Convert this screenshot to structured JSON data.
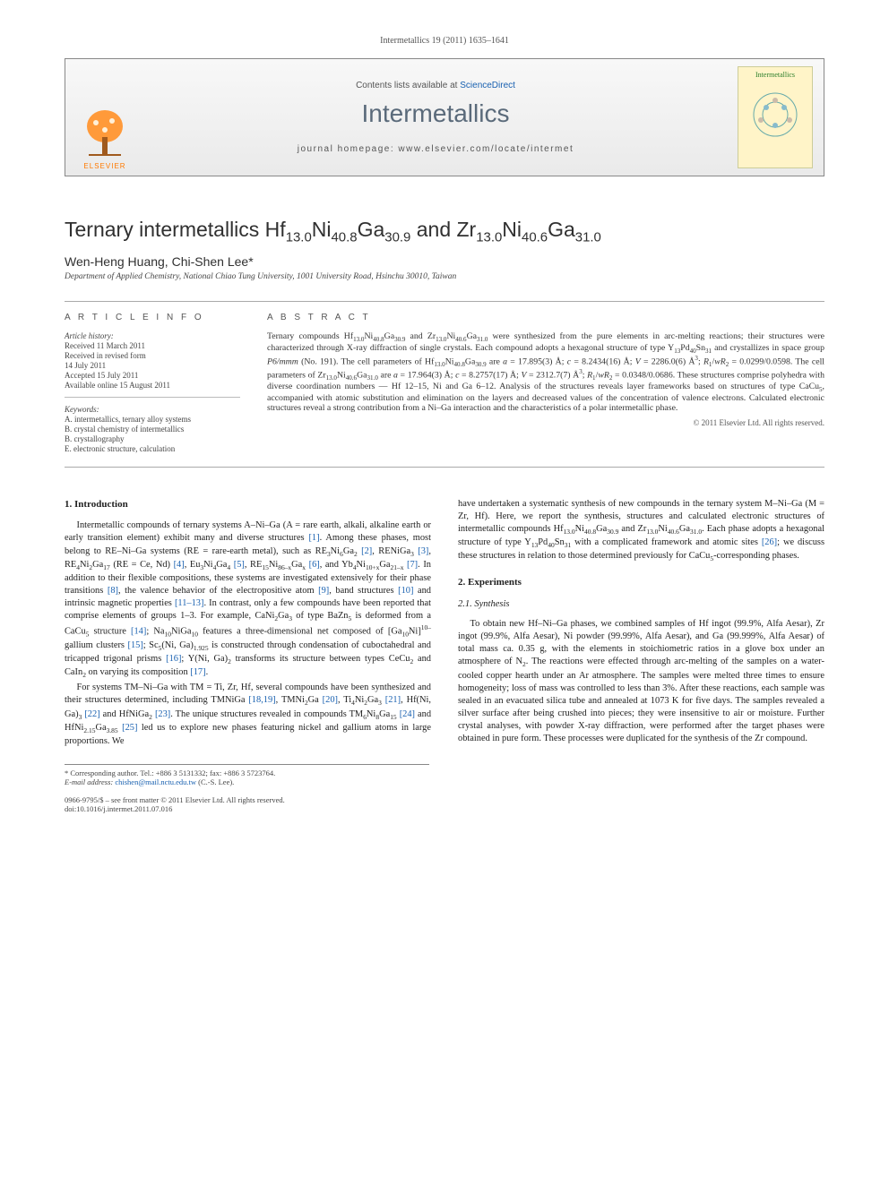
{
  "running_head": "Intermetallics 19 (2011) 1635–1641",
  "banner": {
    "contents_prefix": "Contents lists available at ",
    "contents_link": "ScienceDirect",
    "journal": "Intermetallics",
    "homepage_label": "journal homepage: ",
    "homepage_url": "www.elsevier.com/locate/intermet",
    "publisher": "ELSEVIER",
    "cover_label": "Intermetallics"
  },
  "title_html": "Ternary intermetallics Hf<sub>13.0</sub>Ni<sub>40.8</sub>Ga<sub>30.9</sub> and Zr<sub>13.0</sub>Ni<sub>40.6</sub>Ga<sub>31.0</sub>",
  "authors": "Wen-Heng Huang, Chi-Shen Lee*",
  "affiliation": "Department of Applied Chemistry, National Chiao Tung University, 1001 University Road, Hsinchu 30010, Taiwan",
  "article_info": {
    "head": "A R T I C L E   I N F O",
    "history_head": "Article history:",
    "history": [
      "Received 11 March 2011",
      "Received in revised form",
      "14 July 2011",
      "Accepted 15 July 2011",
      "Available online 15 August 2011"
    ],
    "keywords_head": "Keywords:",
    "keywords": [
      "A. intermetallics, ternary alloy systems",
      "B. crystal chemistry of intermetallics",
      "B. crystallography",
      "E. electronic structure, calculation"
    ]
  },
  "abstract": {
    "head": "A B S T R A C T",
    "text_html": "Ternary compounds Hf<sub>13.0</sub>Ni<sub>40.8</sub>Ga<sub>30.9</sub> and Zr<sub>13.0</sub>Ni<sub>40.6</sub>Ga<sub>31.0</sub> were synthesized from the pure elements in arc-melting reactions; their structures were characterized through X-ray diffraction of single crystals. Each compound adopts a hexagonal structure of type Y<sub>13</sub>Pd<sub>40</sub>Sn<sub>31</sub> and crystallizes in space group <i>P6/mmm</i> (No. 191). The cell parameters of Hf<sub>13.0</sub>Ni<sub>40.8</sub>Ga<sub>30.9</sub> are <i>a</i> = 17.895(3) Å; <i>c</i> = 8.2434(16) Å; <i>V</i> = 2286.0(6) Å<sup>3</sup>; <i>R</i><sub>1</sub>/<i>wR</i><sub>2</sub> = 0.0299/0.0598. The cell parameters of Zr<sub>13.0</sub>Ni<sub>40.6</sub>Ga<sub>31.0</sub> are <i>a</i> = 17.964(3) Å; <i>c</i> = 8.2757(17) Å; <i>V</i> = 2312.7(7) Å<sup>3</sup>; <i>R</i><sub>1</sub>/<i>wR</i><sub>2</sub> = 0.0348/0.0686. These structures comprise polyhedra with diverse coordination numbers — Hf 12–15, Ni and Ga 6–12. Analysis of the structures reveals layer frameworks based on structures of type CaCu<sub>5</sub>, accompanied with atomic substitution and elimination on the layers and decreased values of the concentration of valence electrons. Calculated electronic structures reveal a strong contribution from a Ni–Ga interaction and the characteristics of a polar intermetallic phase.",
    "copyright": "© 2011 Elsevier Ltd. All rights reserved."
  },
  "sections": {
    "s1_head": "1. Introduction",
    "s1_p1_html": "Intermetallic compounds of ternary systems A–Ni–Ga (A = rare earth, alkali, alkaline earth or early transition element) exhibit many and diverse structures <span class=\"refnum\">[1]</span>. Among these phases, most belong to RE–Ni–Ga systems (RE = rare-earth metal), such as RE<sub>3</sub>Ni<sub>6</sub>Ga<sub>2</sub> <span class=\"refnum\">[2]</span>, RENiGa<sub>3</sub> <span class=\"refnum\">[3]</span>, RE<sub>4</sub>Ni<sub>2</sub>Ga<sub>17</sub> (RE = Ce, Nd) <span class=\"refnum\">[4]</span>, Eu<sub>3</sub>Ni<sub>4</sub>Ga<sub>4</sub> <span class=\"refnum\">[5]</span>, RE<sub>15</sub>Ni<sub>86–x</sub>Ga<sub>x</sub> <span class=\"refnum\">[6]</span>, and Yb<sub>4</sub>Ni<sub>10+x</sub>Ga<sub>21–x</sub> <span class=\"refnum\">[7]</span>. In addition to their flexible compositions, these systems are investigated extensively for their phase transitions <span class=\"refnum\">[8]</span>, the valence behavior of the electropositive atom <span class=\"refnum\">[9]</span>, band structures <span class=\"refnum\">[10]</span> and intrinsic magnetic properties <span class=\"refnum\">[11–13]</span>. In contrast, only a few compounds have been reported that comprise elements of groups 1–3. For example, CaNi<sub>2</sub>Ga<sub>3</sub> of type BaZn<sub>5</sub> is deformed from a CaCu<sub>5</sub> structure <span class=\"refnum\">[14]</span>; Na<sub>10</sub>NiGa<sub>10</sub> features a three-dimensional net composed of [Ga<sub>10</sub>Ni]<sup>10–</sup> gallium clusters <span class=\"refnum\">[15]</span>; Sc<sub>5</sub>(Ni, Ga)<sub>1.925</sub> is constructed through condensation of cuboctahedral and tricapped trigonal prisms <span class=\"refnum\">[16]</span>; Y(Ni, Ga)<sub>2</sub> transforms its structure between types CeCu<sub>2</sub> and CaIn<sub>2</sub> on varying its composition <span class=\"refnum\">[17]</span>.",
    "s1_p2_html": "For systems TM–Ni–Ga with TM = Ti, Zr, Hf, several compounds have been synthesized and their structures determined, including TMNiGa <span class=\"refnum\">[18,19]</span>, TMNi<sub>2</sub>Ga <span class=\"refnum\">[20]</span>, Ti<sub>4</sub>Ni<sub>2</sub>Ga<sub>3</sub> <span class=\"refnum\">[21]</span>, Hf(Ni, Ga)<sub>3</sub> <span class=\"refnum\">[22]</span> and HfNiGa<sub>2</sub> <span class=\"refnum\">[23]</span>. The unique structures revealed in compounds TM<sub>6</sub>Ni<sub>8</sub>Ga<sub>15</sub> <span class=\"refnum\">[24]</span> and HfNi<sub>2.15</sub>Ga<sub>3.85</sub> <span class=\"refnum\">[25]</span> led us to explore new phases featuring nickel and gallium atoms in large proportions. We ",
    "s1_p3_html": "have undertaken a systematic synthesis of new compounds in the ternary system M–Ni–Ga (M = Zr, Hf). Here, we report the synthesis, structures and calculated electronic structures of intermetallic compounds Hf<sub>13.0</sub>Ni<sub>40.8</sub>Ga<sub>30.9</sub> and Zr<sub>13.0</sub>Ni<sub>40.6</sub>Ga<sub>31.0</sub>. Each phase adopts a hexagonal structure of type Y<sub>13</sub>Pd<sub>40</sub>Sn<sub>31</sub> with a complicated framework and atomic sites <span class=\"refnum\">[26]</span>; we discuss these structures in relation to those determined previously for CaCu<sub>5</sub>-corresponding phases.",
    "s2_head": "2. Experiments",
    "s21_head": "2.1. Synthesis",
    "s21_p1_html": "To obtain new Hf–Ni–Ga phases, we combined samples of Hf ingot (99.9%, Alfa Aesar), Zr ingot (99.9%, Alfa Aesar), Ni powder (99.99%, Alfa Aesar), and Ga (99.999%, Alfa Aesar) of total mass ca. 0.35 g, with the elements in stoichiometric ratios in a glove box under an atmosphere of N<sub>2</sub>. The reactions were effected through arc-melting of the samples on a water-cooled copper hearth under an Ar atmosphere. The samples were melted three times to ensure homogeneity; loss of mass was controlled to less than 3%. After these reactions, each sample was sealed in an evacuated silica tube and annealed at 1073 K for five days. The samples revealed a silver surface after being crushed into pieces; they were insensitive to air or moisture. Further crystal analyses, with powder X-ray diffraction, were performed after the target phases were obtained in pure form. These processes were duplicated for the synthesis of the Zr compound."
  },
  "footnote": {
    "corr": "* Corresponding author. Tel.: +886 3 5131332; fax: +886 3 5723764.",
    "email_label": "E-mail address: ",
    "email": "chishen@mail.nctu.edu.tw",
    "email_suffix": " (C.-S. Lee)."
  },
  "footer": {
    "issn": "0966-9795/$ – see front matter © 2011 Elsevier Ltd. All rights reserved.",
    "doi": "doi:10.1016/j.intermet.2011.07.016"
  },
  "colors": {
    "link": "#1860b0",
    "elsevier_orange": "#ff7a00",
    "journal_gray": "#5a6a7a"
  }
}
